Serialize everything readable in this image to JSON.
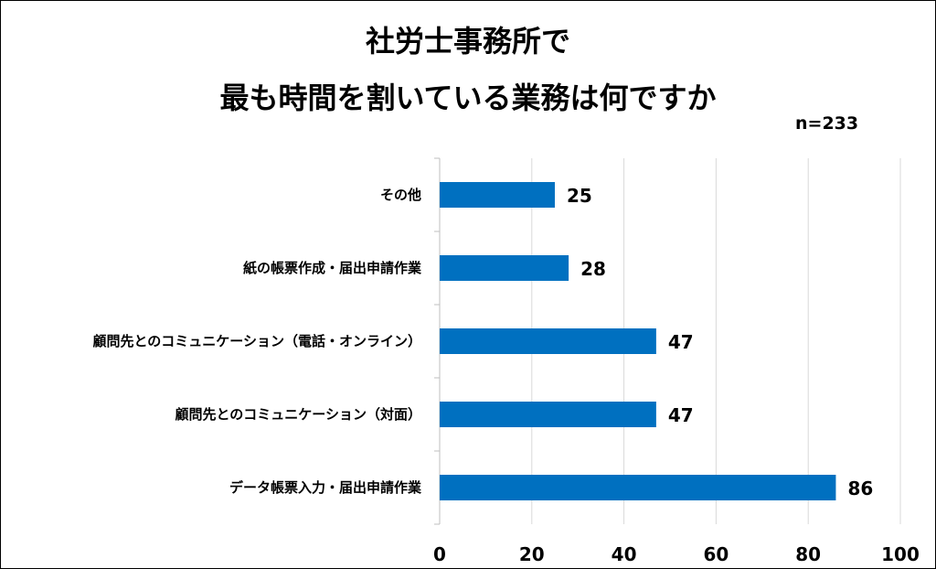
{
  "chart_data": {
    "type": "bar",
    "orientation": "horizontal",
    "title": [
      "社労士事務所で",
      "最も時間を割いている業務は何ですか"
    ],
    "note": "n=233",
    "categories": [
      "その他",
      "紙の帳票作成・届出申請作業",
      "顧問先とのコミュニケーション（電話・オンライン）",
      "顧問先とのコミュニケーション（対面）",
      "データ帳票入力・届出申請作業"
    ],
    "values": [
      25,
      28,
      47,
      47,
      86
    ],
    "xlim": [
      0,
      100
    ],
    "xticks": [
      0,
      20,
      40,
      60,
      80,
      100
    ],
    "grid": true,
    "bar_color": "#0070C0",
    "legend": "none"
  }
}
